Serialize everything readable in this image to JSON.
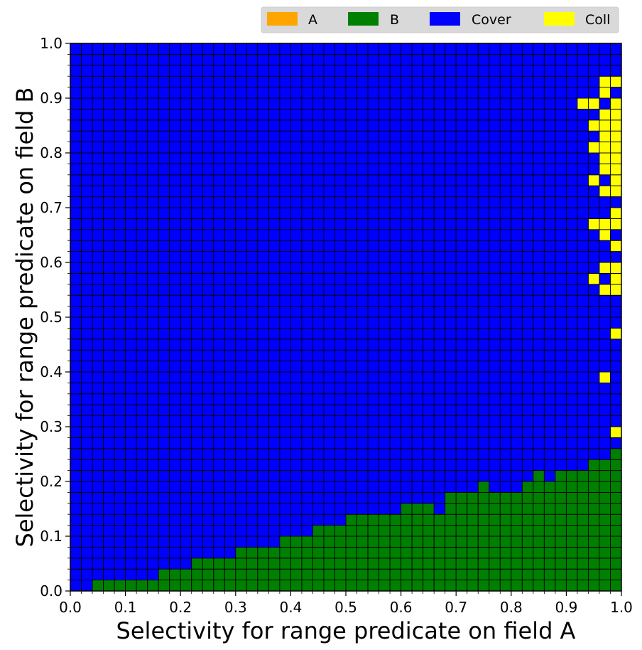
{
  "chart_data": {
    "type": "heatmap",
    "title": "",
    "xlabel": "Selectivity for range predicate on field A",
    "ylabel": "Selectivity for range predicate on field B",
    "xlim": [
      0.0,
      1.0
    ],
    "ylim": [
      0.0,
      1.0
    ],
    "grid_n": 50,
    "cell_size": 0.02,
    "x_ticks": [
      "0.0",
      "0.1",
      "0.2",
      "0.3",
      "0.4",
      "0.5",
      "0.6",
      "0.7",
      "0.8",
      "0.9",
      "1.0"
    ],
    "y_ticks": [
      "0.0",
      "0.1",
      "0.2",
      "0.3",
      "0.4",
      "0.5",
      "0.6",
      "0.7",
      "0.8",
      "0.9",
      "1.0"
    ],
    "legend": {
      "placement": "top-right",
      "entries": [
        {
          "label": "A",
          "color": "#ffa500"
        },
        {
          "label": "B",
          "color": "#008000"
        },
        {
          "label": "Cover",
          "color": "#0000ff"
        },
        {
          "label": "Coll",
          "color": "#ffff00"
        }
      ]
    },
    "default_category": "Cover",
    "b_region_upper_y_by_column": [
      0,
      0,
      0.02,
      0.02,
      0.02,
      0.02,
      0.02,
      0.02,
      0.04,
      0.04,
      0.04,
      0.06,
      0.06,
      0.06,
      0.06,
      0.08,
      0.08,
      0.08,
      0.08,
      0.1,
      0.1,
      0.1,
      0.12,
      0.12,
      0.12,
      0.14,
      0.14,
      0.14,
      0.14,
      0.14,
      0.16,
      0.16,
      0.16,
      0.14,
      0.18,
      0.18,
      0.18,
      0.2,
      0.18,
      0.18,
      0.18,
      0.2,
      0.22,
      0.2,
      0.22,
      0.22,
      0.22,
      0.24,
      0.24,
      0.26
    ],
    "coll_cells": [
      [
        0.92,
        0.87
      ],
      [
        0.94,
        0.87
      ],
      [
        0.96,
        0.91
      ],
      [
        0.98,
        0.91
      ],
      [
        0.96,
        0.89
      ],
      [
        0.98,
        0.87
      ],
      [
        0.96,
        0.85
      ],
      [
        0.98,
        0.85
      ],
      [
        0.94,
        0.83
      ],
      [
        0.96,
        0.83
      ],
      [
        0.98,
        0.83
      ],
      [
        0.96,
        0.81
      ],
      [
        0.98,
        0.81
      ],
      [
        0.94,
        0.79
      ],
      [
        0.96,
        0.79
      ],
      [
        0.98,
        0.79
      ],
      [
        0.96,
        0.77
      ],
      [
        0.98,
        0.77
      ],
      [
        0.96,
        0.75
      ],
      [
        0.98,
        0.75
      ],
      [
        0.94,
        0.73
      ],
      [
        0.98,
        0.73
      ],
      [
        0.96,
        0.71
      ],
      [
        0.98,
        0.71
      ],
      [
        0.98,
        0.67
      ],
      [
        0.94,
        0.65
      ],
      [
        0.96,
        0.65
      ],
      [
        0.98,
        0.65
      ],
      [
        0.96,
        0.63
      ],
      [
        0.98,
        0.61
      ],
      [
        0.96,
        0.59
      ],
      [
        0.98,
        0.59
      ],
      [
        0.94,
        0.57
      ],
      [
        0.98,
        0.55
      ],
      [
        0.96,
        0.53
      ],
      [
        0.98,
        0.53
      ],
      [
        0.98,
        0.47
      ],
      [
        0.96,
        0.37
      ],
      [
        0.98,
        0.29
      ],
      [
        0.98,
        0.27
      ]
    ]
  }
}
